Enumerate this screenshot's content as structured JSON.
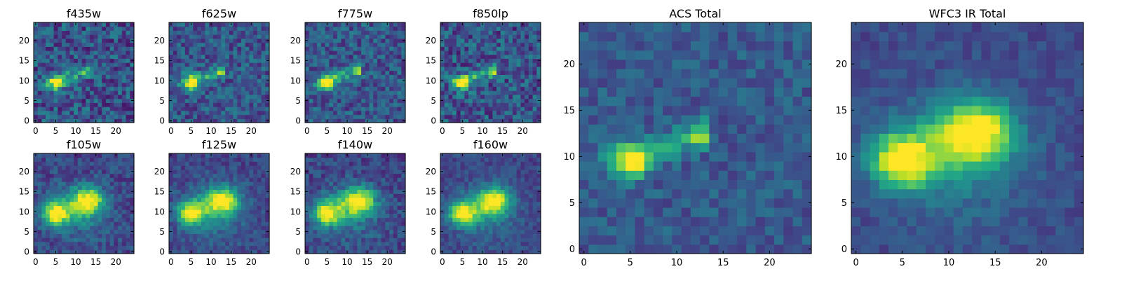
{
  "figure": {
    "colormap": "viridis",
    "colormap_stops": [
      "#440154",
      "#482475",
      "#414487",
      "#355f8d",
      "#2a788e",
      "#21908d",
      "#22a884",
      "#42be71",
      "#7ad151",
      "#bddf26",
      "#fde725"
    ]
  },
  "chart_data": [
    {
      "type": "heatmap",
      "title": "f435w",
      "xticks": [
        "0",
        "5",
        "10",
        "15",
        "20"
      ],
      "yticks": [
        "0",
        "5",
        "10",
        "15",
        "20"
      ],
      "xlim": [
        0,
        24
      ],
      "ylim": [
        0,
        24
      ],
      "grid": false,
      "source": {
        "kind": "acs",
        "noise": 0.2,
        "level": 0.92,
        "seed": 1
      }
    },
    {
      "type": "heatmap",
      "title": "f625w",
      "xticks": [
        "0",
        "5",
        "10",
        "15",
        "20"
      ],
      "yticks": [
        "0",
        "5",
        "10",
        "15",
        "20"
      ],
      "xlim": [
        0,
        24
      ],
      "ylim": [
        0,
        24
      ],
      "grid": false,
      "source": {
        "kind": "acs",
        "noise": 0.17,
        "level": 0.95,
        "seed": 2
      }
    },
    {
      "type": "heatmap",
      "title": "f775w",
      "xticks": [
        "0",
        "5",
        "10",
        "15",
        "20"
      ],
      "yticks": [
        "0",
        "5",
        "10",
        "15",
        "20"
      ],
      "xlim": [
        0,
        24
      ],
      "ylim": [
        0,
        24
      ],
      "grid": false,
      "source": {
        "kind": "acs",
        "noise": 0.17,
        "level": 0.95,
        "seed": 3
      }
    },
    {
      "type": "heatmap",
      "title": "f850lp",
      "xticks": [
        "0",
        "5",
        "10",
        "15",
        "20"
      ],
      "yticks": [
        "0",
        "5",
        "10",
        "15",
        "20"
      ],
      "xlim": [
        0,
        24
      ],
      "ylim": [
        0,
        24
      ],
      "grid": false,
      "source": {
        "kind": "acs",
        "noise": 0.2,
        "level": 0.95,
        "seed": 4
      }
    },
    {
      "type": "heatmap",
      "title": "f105w",
      "xticks": [
        "0",
        "5",
        "10",
        "15",
        "20"
      ],
      "yticks": [
        "0",
        "5",
        "10",
        "15",
        "20"
      ],
      "xlim": [
        0,
        24
      ],
      "ylim": [
        0,
        24
      ],
      "grid": false,
      "source": {
        "kind": "ir",
        "noise": 0.12,
        "level": 0.95,
        "seed": 5
      }
    },
    {
      "type": "heatmap",
      "title": "f125w",
      "xticks": [
        "0",
        "5",
        "10",
        "15",
        "20"
      ],
      "yticks": [
        "0",
        "5",
        "10",
        "15",
        "20"
      ],
      "xlim": [
        0,
        24
      ],
      "ylim": [
        0,
        24
      ],
      "grid": false,
      "source": {
        "kind": "ir",
        "noise": 0.1,
        "level": 0.95,
        "seed": 6
      }
    },
    {
      "type": "heatmap",
      "title": "f140w",
      "xticks": [
        "0",
        "5",
        "10",
        "15",
        "20"
      ],
      "yticks": [
        "0",
        "5",
        "10",
        "15",
        "20"
      ],
      "xlim": [
        0,
        24
      ],
      "ylim": [
        0,
        24
      ],
      "grid": false,
      "source": {
        "kind": "ir",
        "noise": 0.12,
        "level": 0.95,
        "seed": 7
      }
    },
    {
      "type": "heatmap",
      "title": "f160w",
      "xticks": [
        "0",
        "5",
        "10",
        "15",
        "20"
      ],
      "yticks": [
        "0",
        "5",
        "10",
        "15",
        "20"
      ],
      "xlim": [
        0,
        24
      ],
      "ylim": [
        0,
        24
      ],
      "grid": false,
      "source": {
        "kind": "ir",
        "noise": 0.09,
        "level": 0.95,
        "seed": 8
      }
    },
    {
      "type": "heatmap",
      "title": "ACS Total",
      "xticks": [
        "0",
        "5",
        "10",
        "15",
        "20"
      ],
      "yticks": [
        "0",
        "5",
        "10",
        "15",
        "20"
      ],
      "xlim": [
        0,
        24
      ],
      "ylim": [
        0,
        24
      ],
      "grid": false,
      "source": {
        "kind": "acs",
        "noise": 0.11,
        "level": 1.0,
        "seed": 9
      }
    },
    {
      "type": "heatmap",
      "title": "WFC3 IR Total",
      "xticks": [
        "0",
        "5",
        "10",
        "15",
        "20"
      ],
      "yticks": [
        "0",
        "5",
        "10",
        "15",
        "20"
      ],
      "xlim": [
        0,
        24
      ],
      "ylim": [
        0,
        24
      ],
      "grid": false,
      "source": {
        "kind": "ir",
        "noise": 0.07,
        "level": 1.0,
        "seed": 10
      }
    }
  ]
}
